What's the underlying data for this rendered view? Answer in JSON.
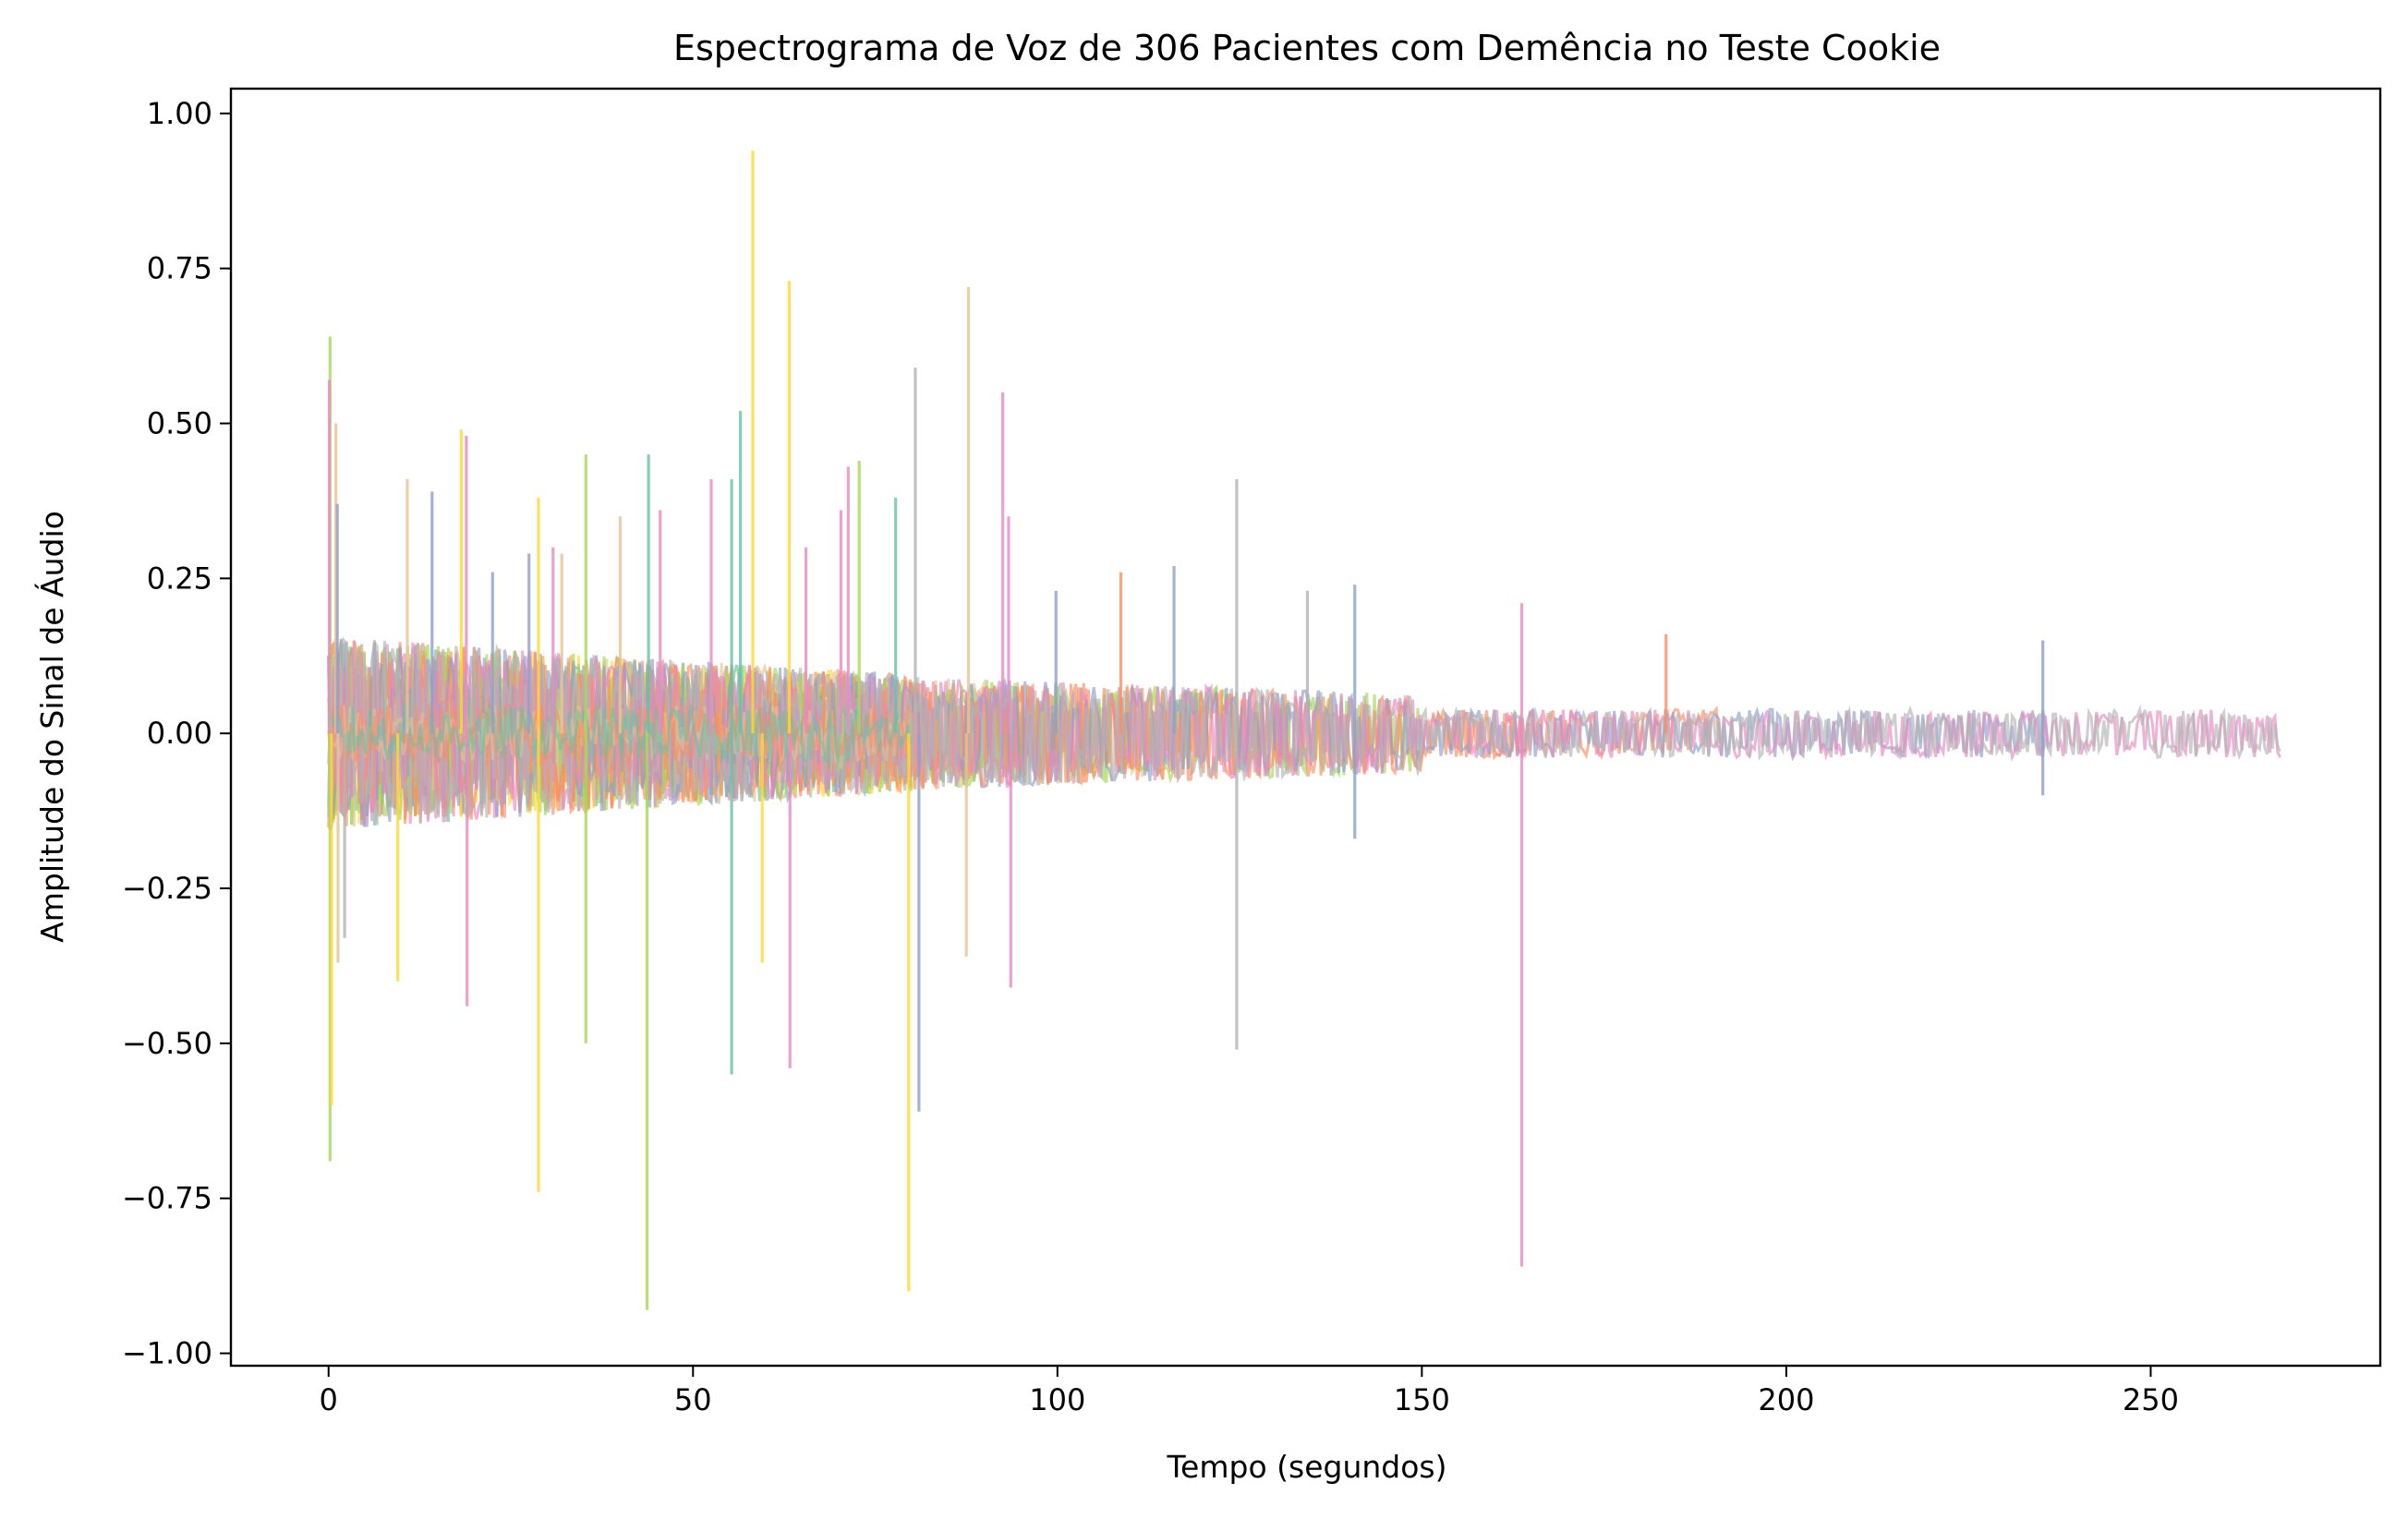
{
  "chart_data": {
    "type": "line",
    "title": "Espectrograma de Voz de 306 Pacientes com Demência no Teste Cookie",
    "xlabel": "Tempo (segundos)",
    "ylabel": "Amplitude do Sinal de Áudio",
    "xlim": [
      -13.4,
      281.5
    ],
    "ylim": [
      -1.02,
      1.04
    ],
    "x_ticks": [
      0,
      50,
      100,
      150,
      200,
      250
    ],
    "x_tick_labels": [
      "0",
      "50",
      "100",
      "150",
      "200",
      "250"
    ],
    "y_ticks": [
      1.0,
      0.75,
      0.5,
      0.25,
      0.0,
      -0.25,
      -0.5,
      -0.75,
      -1.0
    ],
    "y_tick_labels": [
      "1.00",
      "0.75",
      "0.50",
      "0.25",
      "0.00",
      "−0.25",
      "−0.50",
      "−0.75",
      "−1.00"
    ],
    "grid": false,
    "legend": "none",
    "series_count": 306,
    "palette": [
      "#66c2a5",
      "#fc8d62",
      "#8da0cb",
      "#e78ac3",
      "#a6d854",
      "#ffd92f",
      "#e5c494",
      "#b3b3b3"
    ],
    "series_alpha": 0.65,
    "series_extents": [
      {
        "end": 80,
        "color": "#66c2a5"
      },
      {
        "end": 80,
        "color": "#fc8d62"
      },
      {
        "end": 80,
        "color": "#ffd92f"
      },
      {
        "end": 94,
        "color": "#e78ac3"
      },
      {
        "end": 100,
        "color": "#8da0cb"
      },
      {
        "end": 110,
        "color": "#a6d854"
      },
      {
        "end": 121,
        "color": "#e5c494"
      },
      {
        "end": 135,
        "color": "#b3b3b3"
      },
      {
        "end": 150,
        "color": "#a6d854"
      },
      {
        "end": 165,
        "color": "#fc8d62"
      },
      {
        "end": 191,
        "color": "#fc8d62"
      },
      {
        "end": 236,
        "color": "#8da0cb"
      },
      {
        "end": 268,
        "color": "#e78ac3"
      },
      {
        "end": 268,
        "color": "#b3b3b3"
      }
    ],
    "spikes": [
      {
        "x": 0.2,
        "y": 0.64,
        "color": "#a6d854"
      },
      {
        "x": 0.2,
        "y": -0.69,
        "color": "#a6d854"
      },
      {
        "x": 0.1,
        "y": 0.57,
        "color": "#e78ac3"
      },
      {
        "x": 0.4,
        "y": -0.6,
        "color": "#ffd92f"
      },
      {
        "x": 1.0,
        "y": 0.5,
        "color": "#e5c494"
      },
      {
        "x": 1.2,
        "y": 0.37,
        "color": "#8da0cb"
      },
      {
        "x": 1.3,
        "y": -0.37,
        "color": "#e5c494"
      },
      {
        "x": 2.2,
        "y": -0.33,
        "color": "#b3b3b3"
      },
      {
        "x": 9.5,
        "y": -0.4,
        "color": "#ffd92f"
      },
      {
        "x": 10.8,
        "y": 0.41,
        "color": "#e5c494"
      },
      {
        "x": 14.2,
        "y": 0.39,
        "color": "#8da0cb"
      },
      {
        "x": 18.2,
        "y": 0.49,
        "color": "#ffd92f"
      },
      {
        "x": 18.9,
        "y": 0.48,
        "color": "#e78ac3"
      },
      {
        "x": 19.0,
        "y": -0.44,
        "color": "#e78ac3"
      },
      {
        "x": 22.5,
        "y": 0.26,
        "color": "#8da0cb"
      },
      {
        "x": 27.5,
        "y": 0.29,
        "color": "#8da0cb"
      },
      {
        "x": 28.8,
        "y": 0.38,
        "color": "#ffd92f"
      },
      {
        "x": 28.8,
        "y": -0.74,
        "color": "#ffd92f"
      },
      {
        "x": 30.8,
        "y": 0.3,
        "color": "#e78ac3"
      },
      {
        "x": 32.0,
        "y": 0.29,
        "color": "#e5c494"
      },
      {
        "x": 35.3,
        "y": 0.45,
        "color": "#a6d854"
      },
      {
        "x": 35.3,
        "y": -0.5,
        "color": "#a6d854"
      },
      {
        "x": 40.0,
        "y": 0.35,
        "color": "#e5c494"
      },
      {
        "x": 43.7,
        "y": -0.93,
        "color": "#a6d854"
      },
      {
        "x": 43.9,
        "y": 0.45,
        "color": "#66c2a5"
      },
      {
        "x": 45.5,
        "y": 0.36,
        "color": "#e78ac3"
      },
      {
        "x": 52.5,
        "y": 0.41,
        "color": "#e78ac3"
      },
      {
        "x": 55.3,
        "y": 0.41,
        "color": "#66c2a5"
      },
      {
        "x": 55.3,
        "y": -0.55,
        "color": "#66c2a5"
      },
      {
        "x": 56.5,
        "y": 0.52,
        "color": "#66c2a5"
      },
      {
        "x": 58.2,
        "y": 0.94,
        "color": "#ffd92f"
      },
      {
        "x": 59.5,
        "y": -0.37,
        "color": "#ffd92f"
      },
      {
        "x": 63.2,
        "y": 0.73,
        "color": "#ffd92f"
      },
      {
        "x": 63.3,
        "y": -0.54,
        "color": "#e78ac3"
      },
      {
        "x": 65.5,
        "y": 0.3,
        "color": "#e78ac3"
      },
      {
        "x": 70.3,
        "y": 0.36,
        "color": "#e78ac3"
      },
      {
        "x": 71.3,
        "y": 0.43,
        "color": "#e78ac3"
      },
      {
        "x": 72.8,
        "y": 0.44,
        "color": "#a6d854"
      },
      {
        "x": 77.8,
        "y": 0.38,
        "color": "#66c2a5"
      },
      {
        "x": 79.6,
        "y": -0.9,
        "color": "#ffd92f"
      },
      {
        "x": 80.5,
        "y": 0.59,
        "color": "#b3b3b3"
      },
      {
        "x": 81.0,
        "y": -0.61,
        "color": "#8da0cb"
      },
      {
        "x": 87.8,
        "y": 0.72,
        "color": "#e5c494"
      },
      {
        "x": 87.5,
        "y": -0.36,
        "color": "#e5c494"
      },
      {
        "x": 92.5,
        "y": 0.55,
        "color": "#e78ac3"
      },
      {
        "x": 93.3,
        "y": 0.35,
        "color": "#e78ac3"
      },
      {
        "x": 93.6,
        "y": -0.41,
        "color": "#e78ac3"
      },
      {
        "x": 99.8,
        "y": 0.23,
        "color": "#8da0cb"
      },
      {
        "x": 108.7,
        "y": 0.26,
        "color": "#fc8d62"
      },
      {
        "x": 116.0,
        "y": 0.27,
        "color": "#8da0cb"
      },
      {
        "x": 124.6,
        "y": 0.41,
        "color": "#b3b3b3"
      },
      {
        "x": 124.6,
        "y": -0.51,
        "color": "#b3b3b3"
      },
      {
        "x": 134.3,
        "y": 0.23,
        "color": "#b3b3b3"
      },
      {
        "x": 140.8,
        "y": 0.24,
        "color": "#8da0cb"
      },
      {
        "x": 140.8,
        "y": -0.17,
        "color": "#8da0cb"
      },
      {
        "x": 163.7,
        "y": 0.21,
        "color": "#e78ac3"
      },
      {
        "x": 163.7,
        "y": -0.86,
        "color": "#e78ac3"
      },
      {
        "x": 183.5,
        "y": 0.16,
        "color": "#fc8d62"
      },
      {
        "x": 235.2,
        "y": 0.15,
        "color": "#8da0cb"
      },
      {
        "x": 235.2,
        "y": -0.1,
        "color": "#8da0cb"
      }
    ]
  }
}
